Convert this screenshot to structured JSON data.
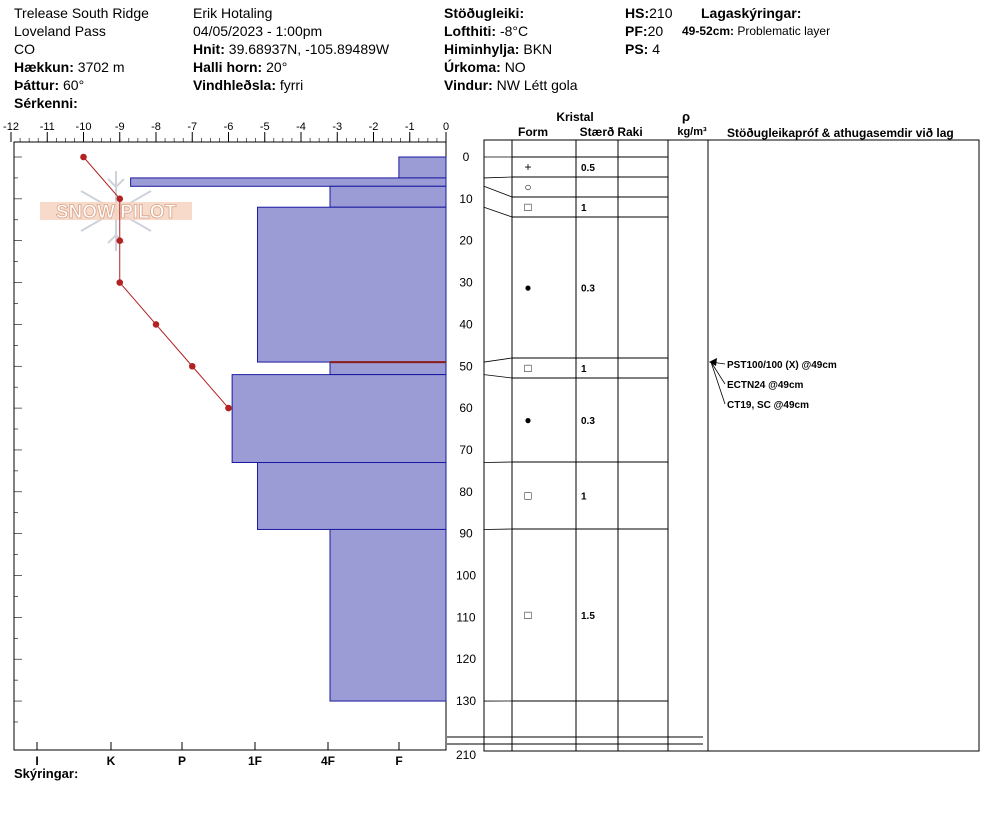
{
  "header": {
    "location_name": "Trelease South Ridge",
    "area": "Loveland Pass",
    "state": "CO",
    "elevation_label": "Hækkun:",
    "elevation_value": "3702 m",
    "aspect_label": "Þáttur:",
    "aspect_value": "60°",
    "special_label": "Sérkenni:",
    "observer": "Erik Hotaling",
    "datetime": "04/05/2023 - 1:00pm",
    "coords_label": "Hnit:",
    "coords_value": "39.68937N, -105.89489W",
    "slope_label": "Halli horn:",
    "slope_value": "20°",
    "wind_loading_label": "Vindhleðsla:",
    "wind_loading_value": "fyrri",
    "stability_label": "Stöðugleiki:",
    "air_temp_label": "Lofthiti:",
    "air_temp_value": "-8°C",
    "sky_label": "Himinhylja:",
    "sky_value": "BKN",
    "precip_label": "Úrkoma:",
    "precip_value": "NO",
    "wind_label": "Vindur:",
    "wind_value": "NW Létt gola",
    "hs_label": "HS:",
    "hs_value": "210",
    "pf_label": "PF:",
    "pf_value": "20",
    "ps_label": "PS:",
    "ps_value": "4",
    "layer_notes_label": "Lagaskýringar:",
    "layer_note_range": "49-52cm:",
    "layer_note_text": "Problematic layer"
  },
  "logo_text": "SNOW PILOT",
  "columns": {
    "crystal": "Kristal",
    "form": "Form",
    "size": "Stærð",
    "moisture": "Raki",
    "density_symbol": "ρ",
    "density_unit": "kg/m³",
    "stability_tests": "Stöðugleikapróf & athugasemdir við lag"
  },
  "legend_label": "Skýringar:",
  "colors": {
    "layer_fill": "#9b9bd6",
    "layer_stroke": "#1a1aa0",
    "temp_line": "#b22222",
    "weak_layer_line": "#8b1a1a"
  },
  "chart_data": {
    "type": "snow_profile",
    "temp_axis": {
      "ticks": [
        "-12",
        "-11",
        "-10",
        "-9",
        "-8",
        "-7",
        "-6",
        "-5",
        "-4",
        "-3",
        "-2",
        "-1",
        "0"
      ],
      "range": [
        -12,
        0
      ]
    },
    "hardness_axis": {
      "ticks": [
        "I",
        "K",
        "P",
        "1F",
        "4F",
        "F"
      ]
    },
    "depth_axis": {
      "ticks": [
        "0",
        "10",
        "20",
        "30",
        "40",
        "50",
        "60",
        "70",
        "80",
        "90",
        "100",
        "110",
        "120",
        "130",
        "210"
      ],
      "range": [
        0,
        210
      ]
    },
    "temperature_profile": [
      {
        "depth": 0,
        "temp": -10
      },
      {
        "depth": 10,
        "temp": -9
      },
      {
        "depth": 20,
        "temp": -9
      },
      {
        "depth": 30,
        "temp": -9
      },
      {
        "depth": 40,
        "temp": -8
      },
      {
        "depth": 50,
        "temp": -7
      },
      {
        "depth": 60,
        "temp": -6
      }
    ],
    "layers": [
      {
        "top": 0,
        "bottom": 5,
        "hardness_temp": -1.3
      },
      {
        "top": 5,
        "bottom": 7,
        "hardness_temp": -8.7
      },
      {
        "top": 7,
        "bottom": 12,
        "hardness_temp": -3.2
      },
      {
        "top": 12,
        "bottom": 49,
        "hardness_temp": -5.2
      },
      {
        "top": 49,
        "bottom": 52,
        "hardness_temp": -3.2
      },
      {
        "top": 52,
        "bottom": 73,
        "hardness_temp": -5.9
      },
      {
        "top": 73,
        "bottom": 89,
        "hardness_temp": -5.2
      },
      {
        "top": 89,
        "bottom": 130,
        "hardness_temp": -3.2
      }
    ],
    "weak_layer_depth": 49,
    "crystal_rows": [
      {
        "top": 0,
        "bottom": 5,
        "form": "+",
        "size": "0.5"
      },
      {
        "top": 5,
        "bottom": 10,
        "form": "○",
        "size": ""
      },
      {
        "top": 10,
        "bottom": 15,
        "form": "□",
        "size": "1"
      },
      {
        "top": 15,
        "bottom": 48,
        "form": "●",
        "size": "0.3"
      },
      {
        "top": 48,
        "bottom": 53,
        "form": "□",
        "size": "1"
      },
      {
        "top": 53,
        "bottom": 73,
        "form": "●",
        "size": "0.3"
      },
      {
        "top": 73,
        "bottom": 89,
        "form": "□",
        "size": "1"
      },
      {
        "top": 89,
        "bottom": 130,
        "form": "□",
        "size": "1.5"
      }
    ],
    "stability_tests": [
      "PST100/100 (X) @49cm",
      "ECTN24 @49cm",
      "CT19, SC @49cm"
    ]
  }
}
